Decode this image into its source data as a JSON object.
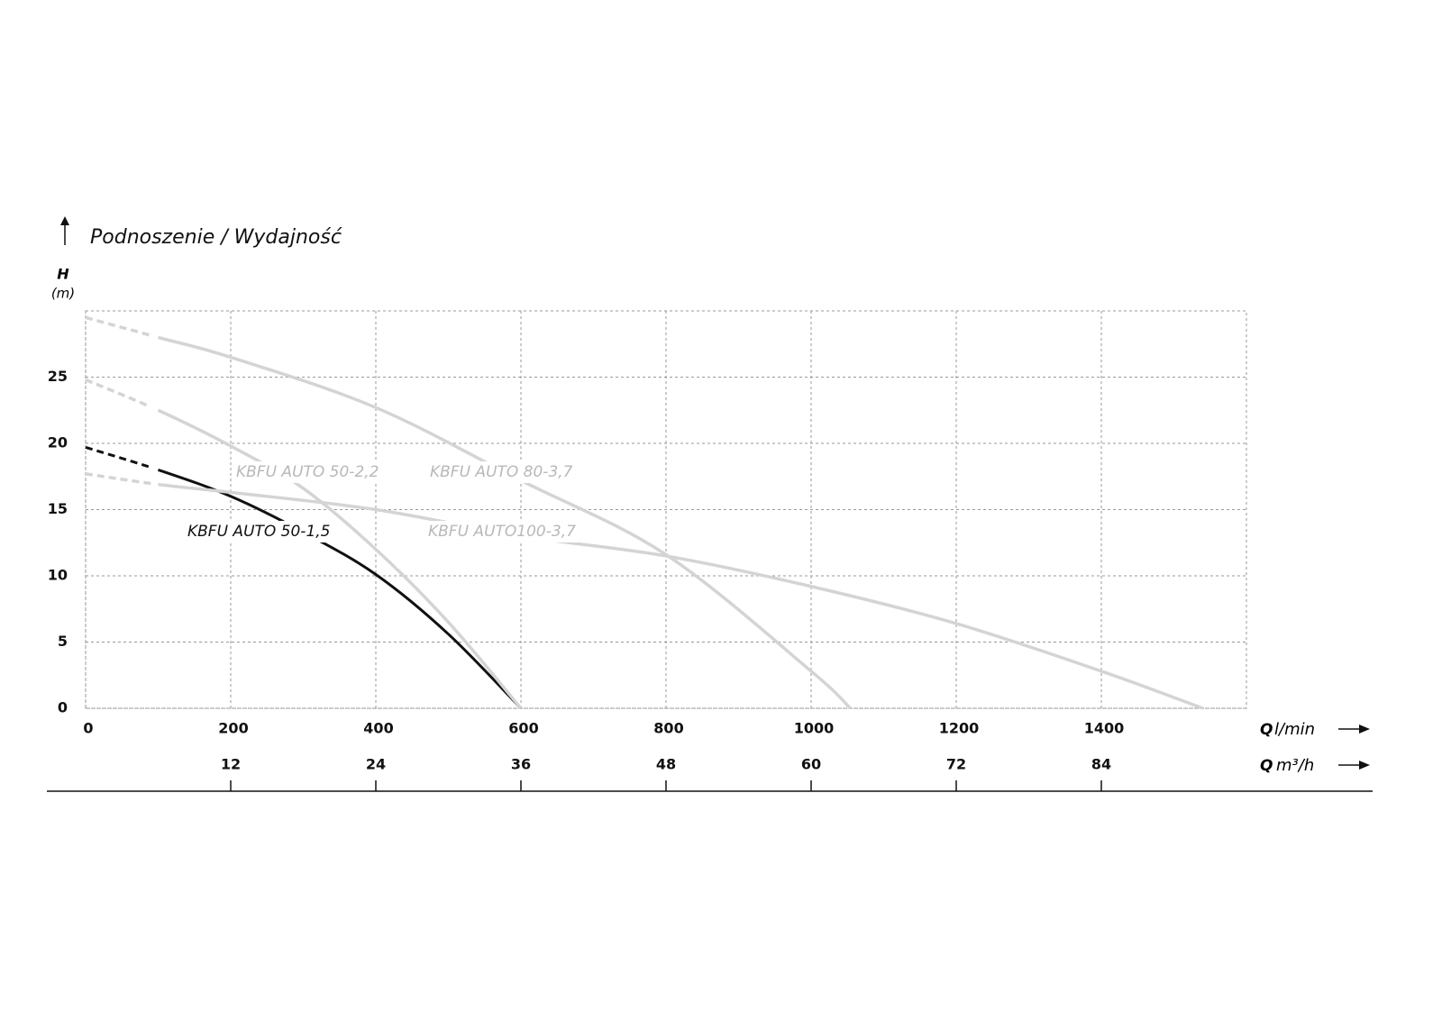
{
  "chart_data": {
    "type": "line",
    "title": "Podnoszenie / Wydajność",
    "y_label_symbol": "H",
    "y_label_unit": "(m)",
    "x_label_symbol": "Q",
    "x_label_unit": "l/min",
    "x2_label_symbol": "Q",
    "x2_label_unit": "m³/h",
    "xlim": [
      0,
      1600
    ],
    "xticks": [
      0,
      200,
      400,
      600,
      800,
      1000,
      1200,
      1400
    ],
    "x2lim": [
      0,
      96
    ],
    "x2ticks": [
      12,
      24,
      36,
      48,
      60,
      72,
      84
    ],
    "ylim": [
      0,
      30
    ],
    "yticks": [
      0,
      5,
      10,
      15,
      20,
      25
    ],
    "grid": true,
    "series": [
      {
        "name": "KBFU AUTO 50-1,5",
        "color": "#111111",
        "x": [
          0,
          100,
          200,
          300,
          400,
          500,
          600
        ],
        "values": [
          19.7,
          18.0,
          16.0,
          13.3,
          10.1,
          5.6,
          0
        ]
      },
      {
        "name": "KBFU AUTO 50-2,2",
        "color": "#d4d4d4",
        "x": [
          0,
          100,
          200,
          300,
          400,
          500,
          600
        ],
        "values": [
          24.8,
          22.5,
          19.8,
          16.6,
          12.0,
          6.5,
          0
        ]
      },
      {
        "name": "KBFU AUTO 80-3,7",
        "color": "#d4d4d4",
        "x": [
          0,
          100,
          200,
          400,
          600,
          800,
          1000,
          1054
        ],
        "values": [
          29.5,
          28.0,
          26.5,
          22.7,
          17.2,
          11.6,
          2.8,
          0
        ]
      },
      {
        "name": "KBFU AUTO100-3,7",
        "color": "#d4d4d4",
        "x": [
          0,
          100,
          200,
          400,
          600,
          800,
          1000,
          1200,
          1400,
          1540
        ],
        "values": [
          17.7,
          16.9,
          16.3,
          15.0,
          13.0,
          11.5,
          9.2,
          6.4,
          2.8,
          0
        ]
      }
    ]
  }
}
